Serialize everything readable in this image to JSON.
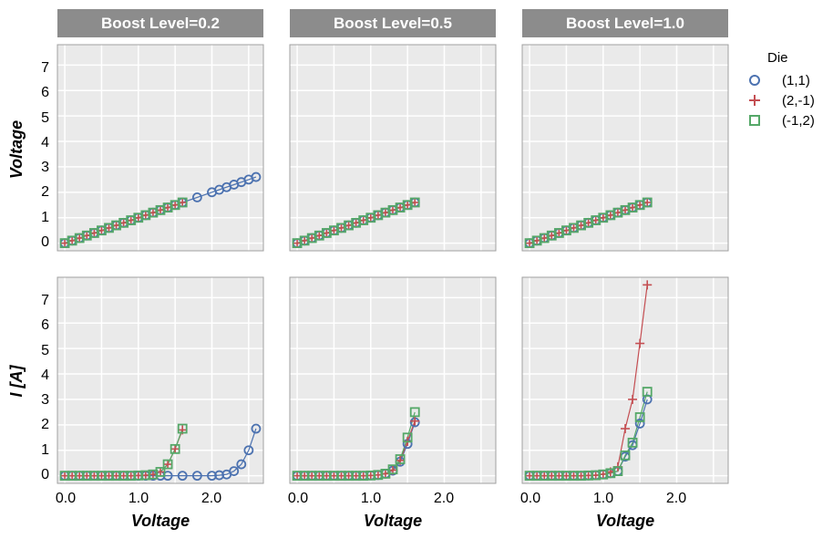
{
  "chart_data": {
    "type": "line",
    "facet_column_prefix": "Boost Level=",
    "facets": [
      "Boost Level=0.2",
      "Boost Level=0.5",
      "Boost Level=1.0"
    ],
    "row_ylabels": [
      "Voltage",
      "I [A]"
    ],
    "xlabel": "Voltage",
    "x_ticks": [
      "0.0",
      "1.0",
      "2.0"
    ],
    "y_ticks": [
      "0",
      "1",
      "2",
      "3",
      "4",
      "5",
      "6",
      "7"
    ],
    "xlim": [
      -0.1,
      2.7
    ],
    "ylim": [
      -0.3,
      7.8
    ],
    "legend": {
      "title": "Die",
      "entries": [
        {
          "label": "(1,1)",
          "marker": "circle",
          "color": "#4C72B0"
        },
        {
          "label": "(2,-1)",
          "marker": "plus",
          "color": "#C44E52"
        },
        {
          "label": "(-1,2)",
          "marker": "square",
          "color": "#55A868"
        }
      ],
      "placement": "top-right outside"
    },
    "colors": {
      "panel_bg": "#EAEAEA",
      "strip_bg": "#8C8C8C",
      "grid": "#FFFFFF",
      "frame": "#A0A0A0"
    },
    "panels": [
      {
        "row": 0,
        "col": 0,
        "series": [
          {
            "name": "(1,1)",
            "x": [
              0,
              0.1,
              0.2,
              0.3,
              0.4,
              0.5,
              0.6,
              0.7,
              0.8,
              0.9,
              1.0,
              1.1,
              1.2,
              1.3,
              1.4,
              1.5,
              1.6,
              1.8,
              2.0,
              2.1,
              2.2,
              2.3,
              2.4,
              2.5,
              2.6
            ],
            "y": [
              0,
              0.1,
              0.2,
              0.3,
              0.4,
              0.5,
              0.6,
              0.7,
              0.8,
              0.9,
              1.0,
              1.1,
              1.2,
              1.3,
              1.4,
              1.5,
              1.6,
              1.8,
              2.0,
              2.1,
              2.2,
              2.3,
              2.4,
              2.5,
              2.6
            ]
          },
          {
            "name": "(2,-1)",
            "x": [
              0,
              0.1,
              0.2,
              0.3,
              0.4,
              0.5,
              0.6,
              0.7,
              0.8,
              0.9,
              1.0,
              1.1,
              1.2,
              1.3,
              1.4,
              1.5,
              1.6
            ],
            "y": [
              0,
              0.1,
              0.2,
              0.3,
              0.4,
              0.5,
              0.6,
              0.7,
              0.8,
              0.9,
              1.0,
              1.1,
              1.2,
              1.3,
              1.4,
              1.5,
              1.6
            ]
          },
          {
            "name": "(-1,2)",
            "x": [
              0,
              0.1,
              0.2,
              0.3,
              0.4,
              0.5,
              0.6,
              0.7,
              0.8,
              0.9,
              1.0,
              1.1,
              1.2,
              1.3,
              1.4,
              1.5,
              1.6
            ],
            "y": [
              0,
              0.1,
              0.2,
              0.3,
              0.4,
              0.5,
              0.6,
              0.7,
              0.8,
              0.9,
              1.0,
              1.1,
              1.2,
              1.3,
              1.4,
              1.5,
              1.6
            ]
          }
        ]
      },
      {
        "row": 0,
        "col": 1,
        "series": [
          {
            "name": "(1,1)",
            "x": [
              0,
              0.1,
              0.2,
              0.3,
              0.4,
              0.5,
              0.6,
              0.7,
              0.8,
              0.9,
              1.0,
              1.1,
              1.2,
              1.3,
              1.4,
              1.5,
              1.6
            ],
            "y": [
              0,
              0.1,
              0.2,
              0.3,
              0.4,
              0.5,
              0.6,
              0.7,
              0.8,
              0.9,
              1.0,
              1.1,
              1.2,
              1.3,
              1.4,
              1.5,
              1.6
            ]
          },
          {
            "name": "(2,-1)",
            "x": [
              0,
              0.1,
              0.2,
              0.3,
              0.4,
              0.5,
              0.6,
              0.7,
              0.8,
              0.9,
              1.0,
              1.1,
              1.2,
              1.3,
              1.4,
              1.5,
              1.6
            ],
            "y": [
              0,
              0.1,
              0.2,
              0.3,
              0.4,
              0.5,
              0.6,
              0.7,
              0.8,
              0.9,
              1.0,
              1.1,
              1.2,
              1.3,
              1.4,
              1.5,
              1.6
            ]
          },
          {
            "name": "(-1,2)",
            "x": [
              0,
              0.1,
              0.2,
              0.3,
              0.4,
              0.5,
              0.6,
              0.7,
              0.8,
              0.9,
              1.0,
              1.1,
              1.2,
              1.3,
              1.4,
              1.5,
              1.6
            ],
            "y": [
              0,
              0.1,
              0.2,
              0.3,
              0.4,
              0.5,
              0.6,
              0.7,
              0.8,
              0.9,
              1.0,
              1.1,
              1.2,
              1.3,
              1.4,
              1.5,
              1.6
            ]
          }
        ]
      },
      {
        "row": 0,
        "col": 2,
        "series": [
          {
            "name": "(1,1)",
            "x": [
              0,
              0.1,
              0.2,
              0.3,
              0.4,
              0.5,
              0.6,
              0.7,
              0.8,
              0.9,
              1.0,
              1.1,
              1.2,
              1.3,
              1.4,
              1.5,
              1.6
            ],
            "y": [
              0,
              0.1,
              0.2,
              0.3,
              0.4,
              0.5,
              0.6,
              0.7,
              0.8,
              0.9,
              1.0,
              1.1,
              1.2,
              1.3,
              1.4,
              1.5,
              1.6
            ]
          },
          {
            "name": "(2,-1)",
            "x": [
              0,
              0.1,
              0.2,
              0.3,
              0.4,
              0.5,
              0.6,
              0.7,
              0.8,
              0.9,
              1.0,
              1.1,
              1.2,
              1.3,
              1.4,
              1.5,
              1.6
            ],
            "y": [
              0,
              0.1,
              0.2,
              0.3,
              0.4,
              0.5,
              0.6,
              0.7,
              0.8,
              0.9,
              1.0,
              1.1,
              1.2,
              1.3,
              1.4,
              1.5,
              1.6
            ]
          },
          {
            "name": "(-1,2)",
            "x": [
              0,
              0.1,
              0.2,
              0.3,
              0.4,
              0.5,
              0.6,
              0.7,
              0.8,
              0.9,
              1.0,
              1.1,
              1.2,
              1.3,
              1.4,
              1.5,
              1.6
            ],
            "y": [
              0,
              0.1,
              0.2,
              0.3,
              0.4,
              0.5,
              0.6,
              0.7,
              0.8,
              0.9,
              1.0,
              1.1,
              1.2,
              1.3,
              1.4,
              1.5,
              1.6
            ]
          }
        ]
      },
      {
        "row": 1,
        "col": 0,
        "series": [
          {
            "name": "(1,1)",
            "x": [
              0,
              0.1,
              0.2,
              0.3,
              0.4,
              0.5,
              0.6,
              0.7,
              0.8,
              0.9,
              1.0,
              1.1,
              1.2,
              1.3,
              1.4,
              1.6,
              1.8,
              2.0,
              2.1,
              2.2,
              2.3,
              2.4,
              2.5,
              2.6
            ],
            "y": [
              0,
              0,
              0,
              0,
              0,
              0,
              0,
              0,
              0,
              0,
              0,
              0,
              0,
              0,
              0,
              0,
              0,
              0,
              0.02,
              0.05,
              0.18,
              0.45,
              1.0,
              1.85
            ]
          },
          {
            "name": "(2,-1)",
            "x": [
              0,
              0.1,
              0.2,
              0.3,
              0.4,
              0.5,
              0.6,
              0.7,
              0.8,
              0.9,
              1.0,
              1.1,
              1.2,
              1.3,
              1.4,
              1.5,
              1.6
            ],
            "y": [
              0,
              0,
              0,
              0,
              0,
              0,
              0,
              0,
              0,
              0,
              0.01,
              0.02,
              0.05,
              0.15,
              0.45,
              1.05,
              1.8
            ]
          },
          {
            "name": "(-1,2)",
            "x": [
              0,
              0.1,
              0.2,
              0.3,
              0.4,
              0.5,
              0.6,
              0.7,
              0.8,
              0.9,
              1.0,
              1.1,
              1.2,
              1.3,
              1.4,
              1.5,
              1.6
            ],
            "y": [
              0,
              0,
              0,
              0,
              0,
              0,
              0,
              0,
              0,
              0,
              0.01,
              0.02,
              0.05,
              0.15,
              0.45,
              1.05,
              1.85
            ]
          }
        ]
      },
      {
        "row": 1,
        "col": 1,
        "series": [
          {
            "name": "(1,1)",
            "x": [
              0,
              0.1,
              0.2,
              0.3,
              0.4,
              0.5,
              0.6,
              0.7,
              0.8,
              0.9,
              1.0,
              1.1,
              1.2,
              1.3,
              1.4,
              1.5,
              1.6
            ],
            "y": [
              0,
              0,
              0,
              0,
              0,
              0,
              0,
              0,
              0,
              0,
              0.01,
              0.03,
              0.08,
              0.2,
              0.55,
              1.25,
              2.1
            ]
          },
          {
            "name": "(2,-1)",
            "x": [
              0,
              0.1,
              0.2,
              0.3,
              0.4,
              0.5,
              0.6,
              0.7,
              0.8,
              0.9,
              1.0,
              1.1,
              1.2,
              1.3,
              1.4,
              1.5,
              1.6
            ],
            "y": [
              0,
              0,
              0,
              0,
              0,
              0,
              0,
              0,
              0,
              0,
              0.01,
              0.03,
              0.08,
              0.22,
              0.6,
              1.35,
              2.15
            ]
          },
          {
            "name": "(-1,2)",
            "x": [
              0,
              0.1,
              0.2,
              0.3,
              0.4,
              0.5,
              0.6,
              0.7,
              0.8,
              0.9,
              1.0,
              1.1,
              1.2,
              1.3,
              1.4,
              1.5,
              1.6
            ],
            "y": [
              0,
              0,
              0,
              0,
              0,
              0,
              0,
              0,
              0,
              0,
              0.01,
              0.03,
              0.08,
              0.25,
              0.65,
              1.5,
              2.5
            ]
          }
        ]
      },
      {
        "row": 1,
        "col": 2,
        "series": [
          {
            "name": "(1,1)",
            "x": [
              0,
              0.1,
              0.2,
              0.3,
              0.4,
              0.5,
              0.6,
              0.7,
              0.8,
              0.9,
              1.0,
              1.1,
              1.2,
              1.3,
              1.4,
              1.5,
              1.6
            ],
            "y": [
              0,
              0,
              0,
              0,
              0,
              0,
              0,
              0,
              0.01,
              0.02,
              0.05,
              0.1,
              0.18,
              0.75,
              1.2,
              2.05,
              3.0
            ]
          },
          {
            "name": "(2,-1)",
            "x": [
              0,
              0.1,
              0.2,
              0.3,
              0.4,
              0.5,
              0.6,
              0.7,
              0.8,
              0.9,
              1.0,
              1.1,
              1.2,
              1.3,
              1.4,
              1.5,
              1.6
            ],
            "y": [
              0,
              0,
              0,
              0,
              0,
              0,
              0,
              0,
              0.01,
              0.02,
              0.06,
              0.15,
              0.35,
              1.85,
              3.0,
              5.2,
              7.5
            ]
          },
          {
            "name": "(-1,2)",
            "x": [
              0,
              0.1,
              0.2,
              0.3,
              0.4,
              0.5,
              0.6,
              0.7,
              0.8,
              0.9,
              1.0,
              1.1,
              1.2,
              1.3,
              1.4,
              1.5,
              1.6
            ],
            "y": [
              0,
              0,
              0,
              0,
              0,
              0,
              0,
              0,
              0.01,
              0.02,
              0.05,
              0.1,
              0.18,
              0.8,
              1.3,
              2.3,
              3.3
            ]
          }
        ]
      }
    ]
  }
}
